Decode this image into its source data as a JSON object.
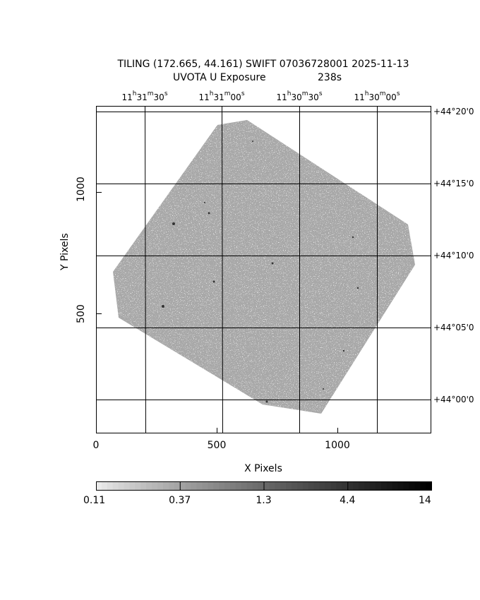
{
  "chart_data": {
    "type": "heatmap",
    "title": "TILING (172.665, 44.161) SWIFT 07036728001 2025-11-13",
    "subtitle": "UVOTA U Exposure",
    "subtitle_value": "238s",
    "xlabel": "X Pixels",
    "ylabel": "Y Pixels",
    "xlim": [
      0,
      1400
    ],
    "ylim": [
      0,
      1300
    ],
    "x_ticks": [
      "0",
      "500",
      "1000"
    ],
    "y_ticks": [
      "500",
      "1000"
    ],
    "top_ticks": [
      {
        "h": "11",
        "m": "31",
        "s": "30"
      },
      {
        "h": "11",
        "m": "31",
        "s": "00"
      },
      {
        "h": "11",
        "m": "30",
        "s": "30"
      },
      {
        "h": "11",
        "m": "30",
        "s": "00"
      }
    ],
    "right_ticks": [
      "+44°20'0",
      "+44°15'0",
      "+44°10'0",
      "+44°05'0",
      "+44°00'0"
    ],
    "grid": true,
    "colormap": "grayscale (inverted)",
    "colorbar": {
      "scale": "log",
      "ticks": [
        "0.11",
        "0.37",
        "1.3",
        "4.4",
        "14"
      ],
      "placement": "bottom"
    },
    "colors": {
      "field": "#a8a8a8",
      "background": "#ffffff",
      "grid": "#000000"
    }
  }
}
